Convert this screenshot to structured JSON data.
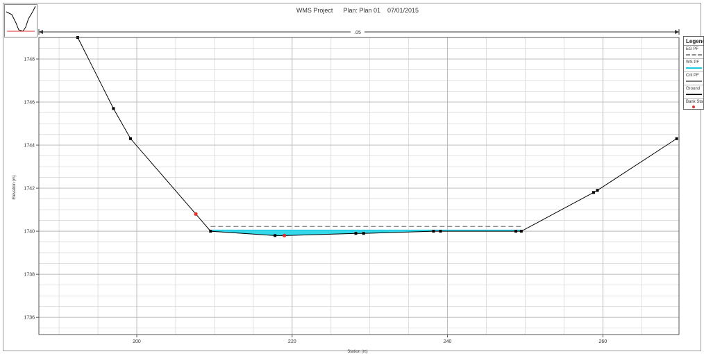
{
  "header": {
    "project": "WMS Project",
    "plan": "Plan: Plan 01",
    "date": "07/01/2015"
  },
  "reach_label": ".05",
  "legend": {
    "title": "Legend",
    "items": [
      {
        "label": "EG PF",
        "color": "#8a8a8a",
        "style": "dashed"
      },
      {
        "label": "WS PF",
        "color": "#1ec8e0",
        "style": "solid"
      },
      {
        "label": "Crit PF",
        "color": "#7a7a7a",
        "style": "solid"
      },
      {
        "label": "Ground",
        "color": "#000000",
        "style": "line-marker"
      },
      {
        "label": "Bank Sta",
        "color": "#e03030",
        "style": "marker"
      }
    ]
  },
  "chart_data": {
    "type": "line",
    "title": "WMS Project    Plan: Plan 01    07/01/2015",
    "xlabel": "Station (m)",
    "ylabel": "Elevation (m)",
    "xlim": [
      187.4,
      269.8
    ],
    "ylim": [
      1735.2,
      1749.0
    ],
    "xticks": [
      200,
      220,
      240,
      260
    ],
    "yticks": [
      1736,
      1738,
      1740,
      1742,
      1744,
      1746,
      1748
    ],
    "grid": true,
    "legend_position": "right",
    "series": [
      {
        "name": "Ground",
        "color": "#000000",
        "x": [
          192.4,
          197.0,
          199.2,
          207.6,
          209.5,
          217.8,
          219.0,
          228.2,
          229.2,
          238.2,
          239.1,
          248.8,
          249.5,
          258.8,
          259.3,
          269.5
        ],
        "y": [
          1749.0,
          1745.7,
          1744.3,
          1740.8,
          1740.0,
          1739.8,
          1739.8,
          1739.9,
          1739.9,
          1740.0,
          1740.0,
          1740.0,
          1740.0,
          1741.8,
          1741.9,
          1744.3
        ]
      },
      {
        "name": "Bank Sta",
        "color": "#e03030",
        "x": [
          207.6,
          219.0
        ],
        "y": [
          1740.8,
          1739.8
        ]
      },
      {
        "name": "WS PF",
        "color": "#1ec8e0",
        "x": [
          209.5,
          249.5
        ],
        "y": [
          1740.05,
          1740.05
        ]
      },
      {
        "name": "EG PF",
        "color": "#8a8a8a",
        "x": [
          209.5,
          249.5
        ],
        "y": [
          1740.22,
          1740.22
        ]
      }
    ]
  }
}
